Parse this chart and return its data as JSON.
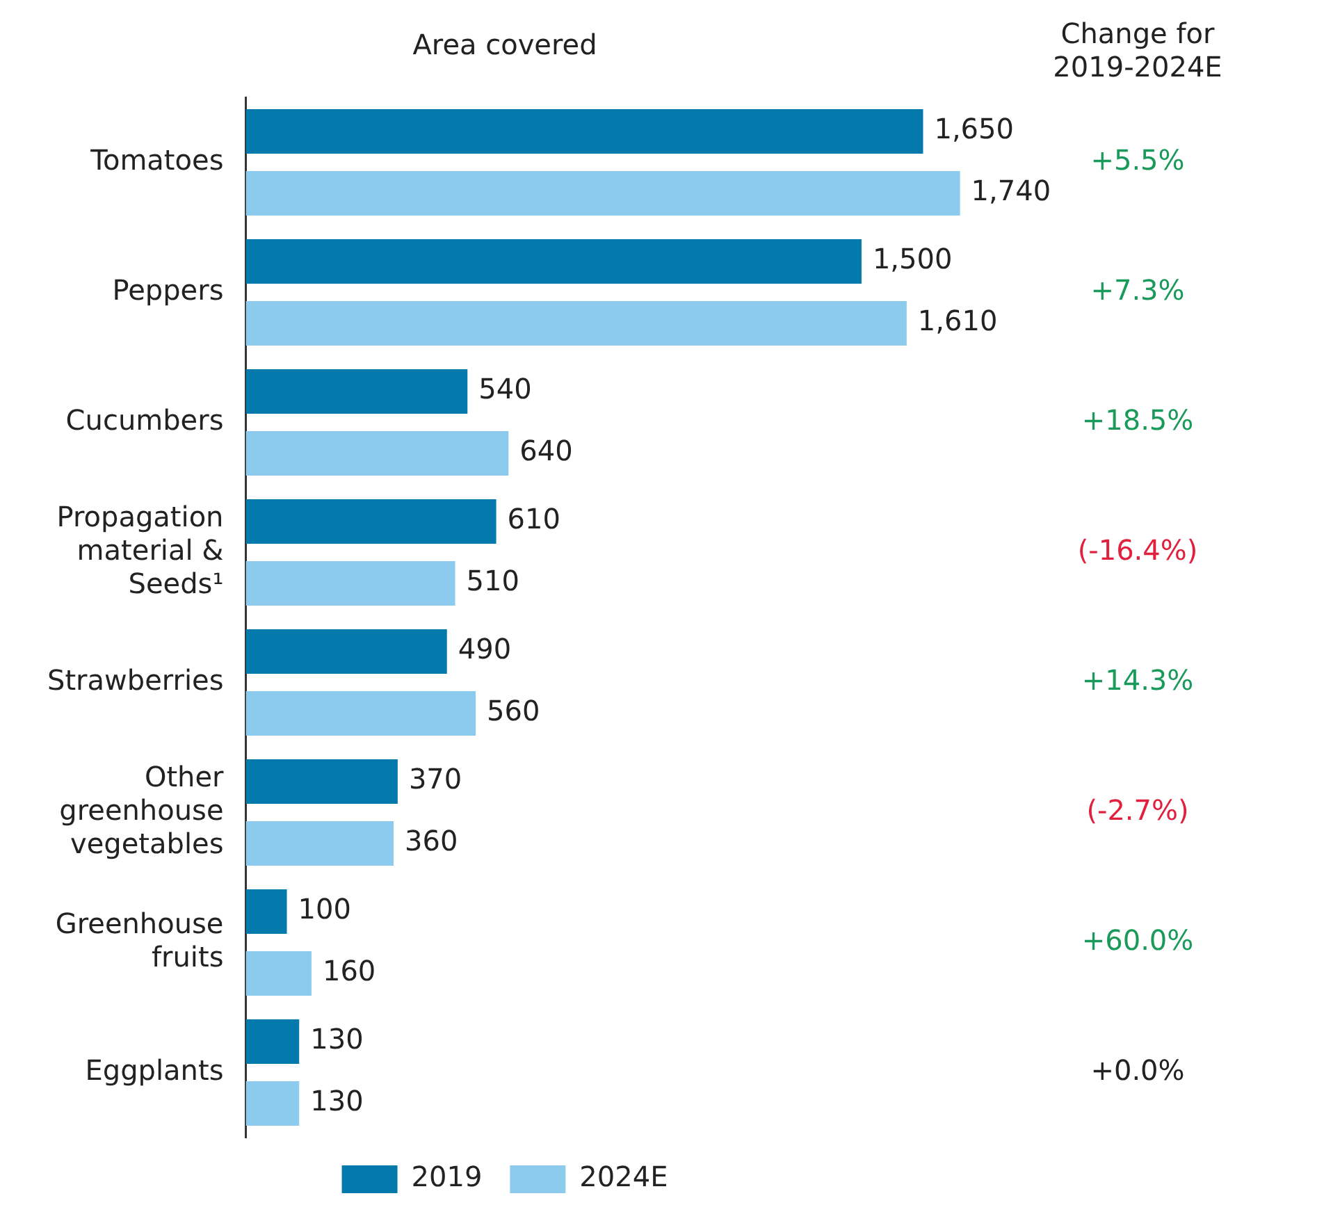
{
  "chart_data": {
    "type": "bar",
    "orientation": "horizontal",
    "title": "Area covered",
    "categories": [
      "Tomatoes",
      "Peppers",
      "Cucumbers",
      "Propagation material & Seeds¹",
      "Strawberries",
      "Other greenhouse vegetables",
      "Greenhouse fruits",
      "Eggplants"
    ],
    "series": [
      {
        "name": "2019",
        "color": "#037aab",
        "values": [
          1650,
          1500,
          540,
          610,
          490,
          370,
          100,
          130
        ],
        "value_labels": [
          "1,650",
          "1,500",
          "540",
          "610",
          "490",
          "370",
          "100",
          "130"
        ]
      },
      {
        "name": "2024E",
        "color": "#8ccbee",
        "values": [
          1740,
          1610,
          640,
          510,
          560,
          360,
          160,
          130
        ],
        "value_labels": [
          "1,740",
          "1,610",
          "640",
          "510",
          "560",
          "360",
          "160",
          "130"
        ]
      }
    ],
    "grid": false,
    "legend": "bottom",
    "tick_labels": "y",
    "annotations": [
      "Change for 2019-2024E",
      "+5.5%",
      "+7.3%",
      "+18.5%",
      "(-16.4%)",
      "+14.3%",
      "(-2.7%)",
      "+60.0%",
      "+0.0%"
    ]
  }
}
